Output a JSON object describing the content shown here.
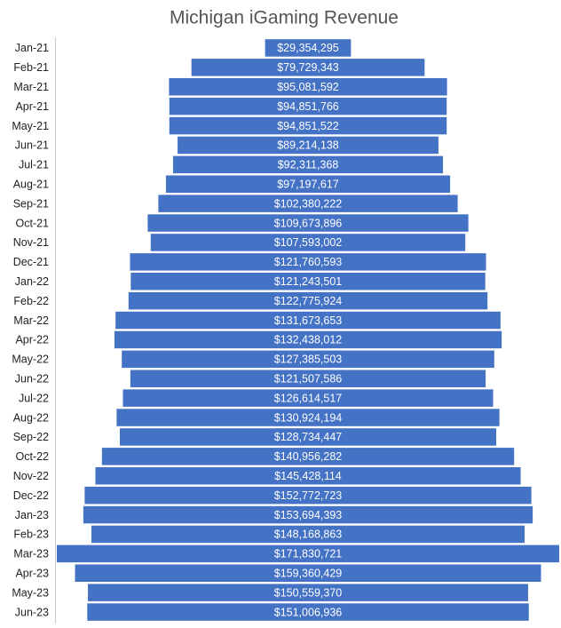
{
  "chart_data": {
    "type": "funnel",
    "title": "Michigan iGaming Revenue",
    "color": "#4472c4",
    "categories": [
      "Jan-21",
      "Feb-21",
      "Mar-21",
      "Apr-21",
      "May-21",
      "Jun-21",
      "Jul-21",
      "Aug-21",
      "Sep-21",
      "Oct-21",
      "Nov-21",
      "Dec-21",
      "Jan-22",
      "Feb-22",
      "Mar-22",
      "Apr-22",
      "May-22",
      "Jun-22",
      "Jul-22",
      "Aug-22",
      "Sep-22",
      "Oct-22",
      "Nov-22",
      "Dec-22",
      "Jan-23",
      "Feb-23",
      "Mar-23",
      "Apr-23",
      "May-23",
      "Jun-23"
    ],
    "values": [
      29354295,
      79729343,
      95081592,
      94851766,
      94851522,
      89214138,
      92311368,
      97197617,
      102380222,
      109673896,
      107593002,
      121760593,
      121243501,
      122775924,
      131673653,
      132438012,
      127385503,
      121507586,
      126614517,
      130924194,
      128734447,
      140956282,
      145428114,
      152772723,
      153694393,
      148168863,
      171830721,
      159360429,
      150559370,
      151006936
    ],
    "value_labels": [
      "$29,354,295",
      "$79,729,343",
      "$95,081,592",
      "$94,851,766",
      "$94,851,522",
      "$89,214,138",
      "$92,311,368",
      "$97,197,617",
      "$102,380,222",
      "$109,673,896",
      "$107,593,002",
      "$121,760,593",
      "$121,243,501",
      "$122,775,924",
      "$131,673,653",
      "$132,438,012",
      "$127,385,503",
      "$121,507,586",
      "$126,614,517",
      "$130,924,194",
      "$128,734,447",
      "$140,956,282",
      "$145,428,114",
      "$152,772,723",
      "$153,694,393",
      "$148,168,863",
      "$171,830,721",
      "$159,360,429",
      "$150,559,370",
      "$151,006,936"
    ]
  }
}
